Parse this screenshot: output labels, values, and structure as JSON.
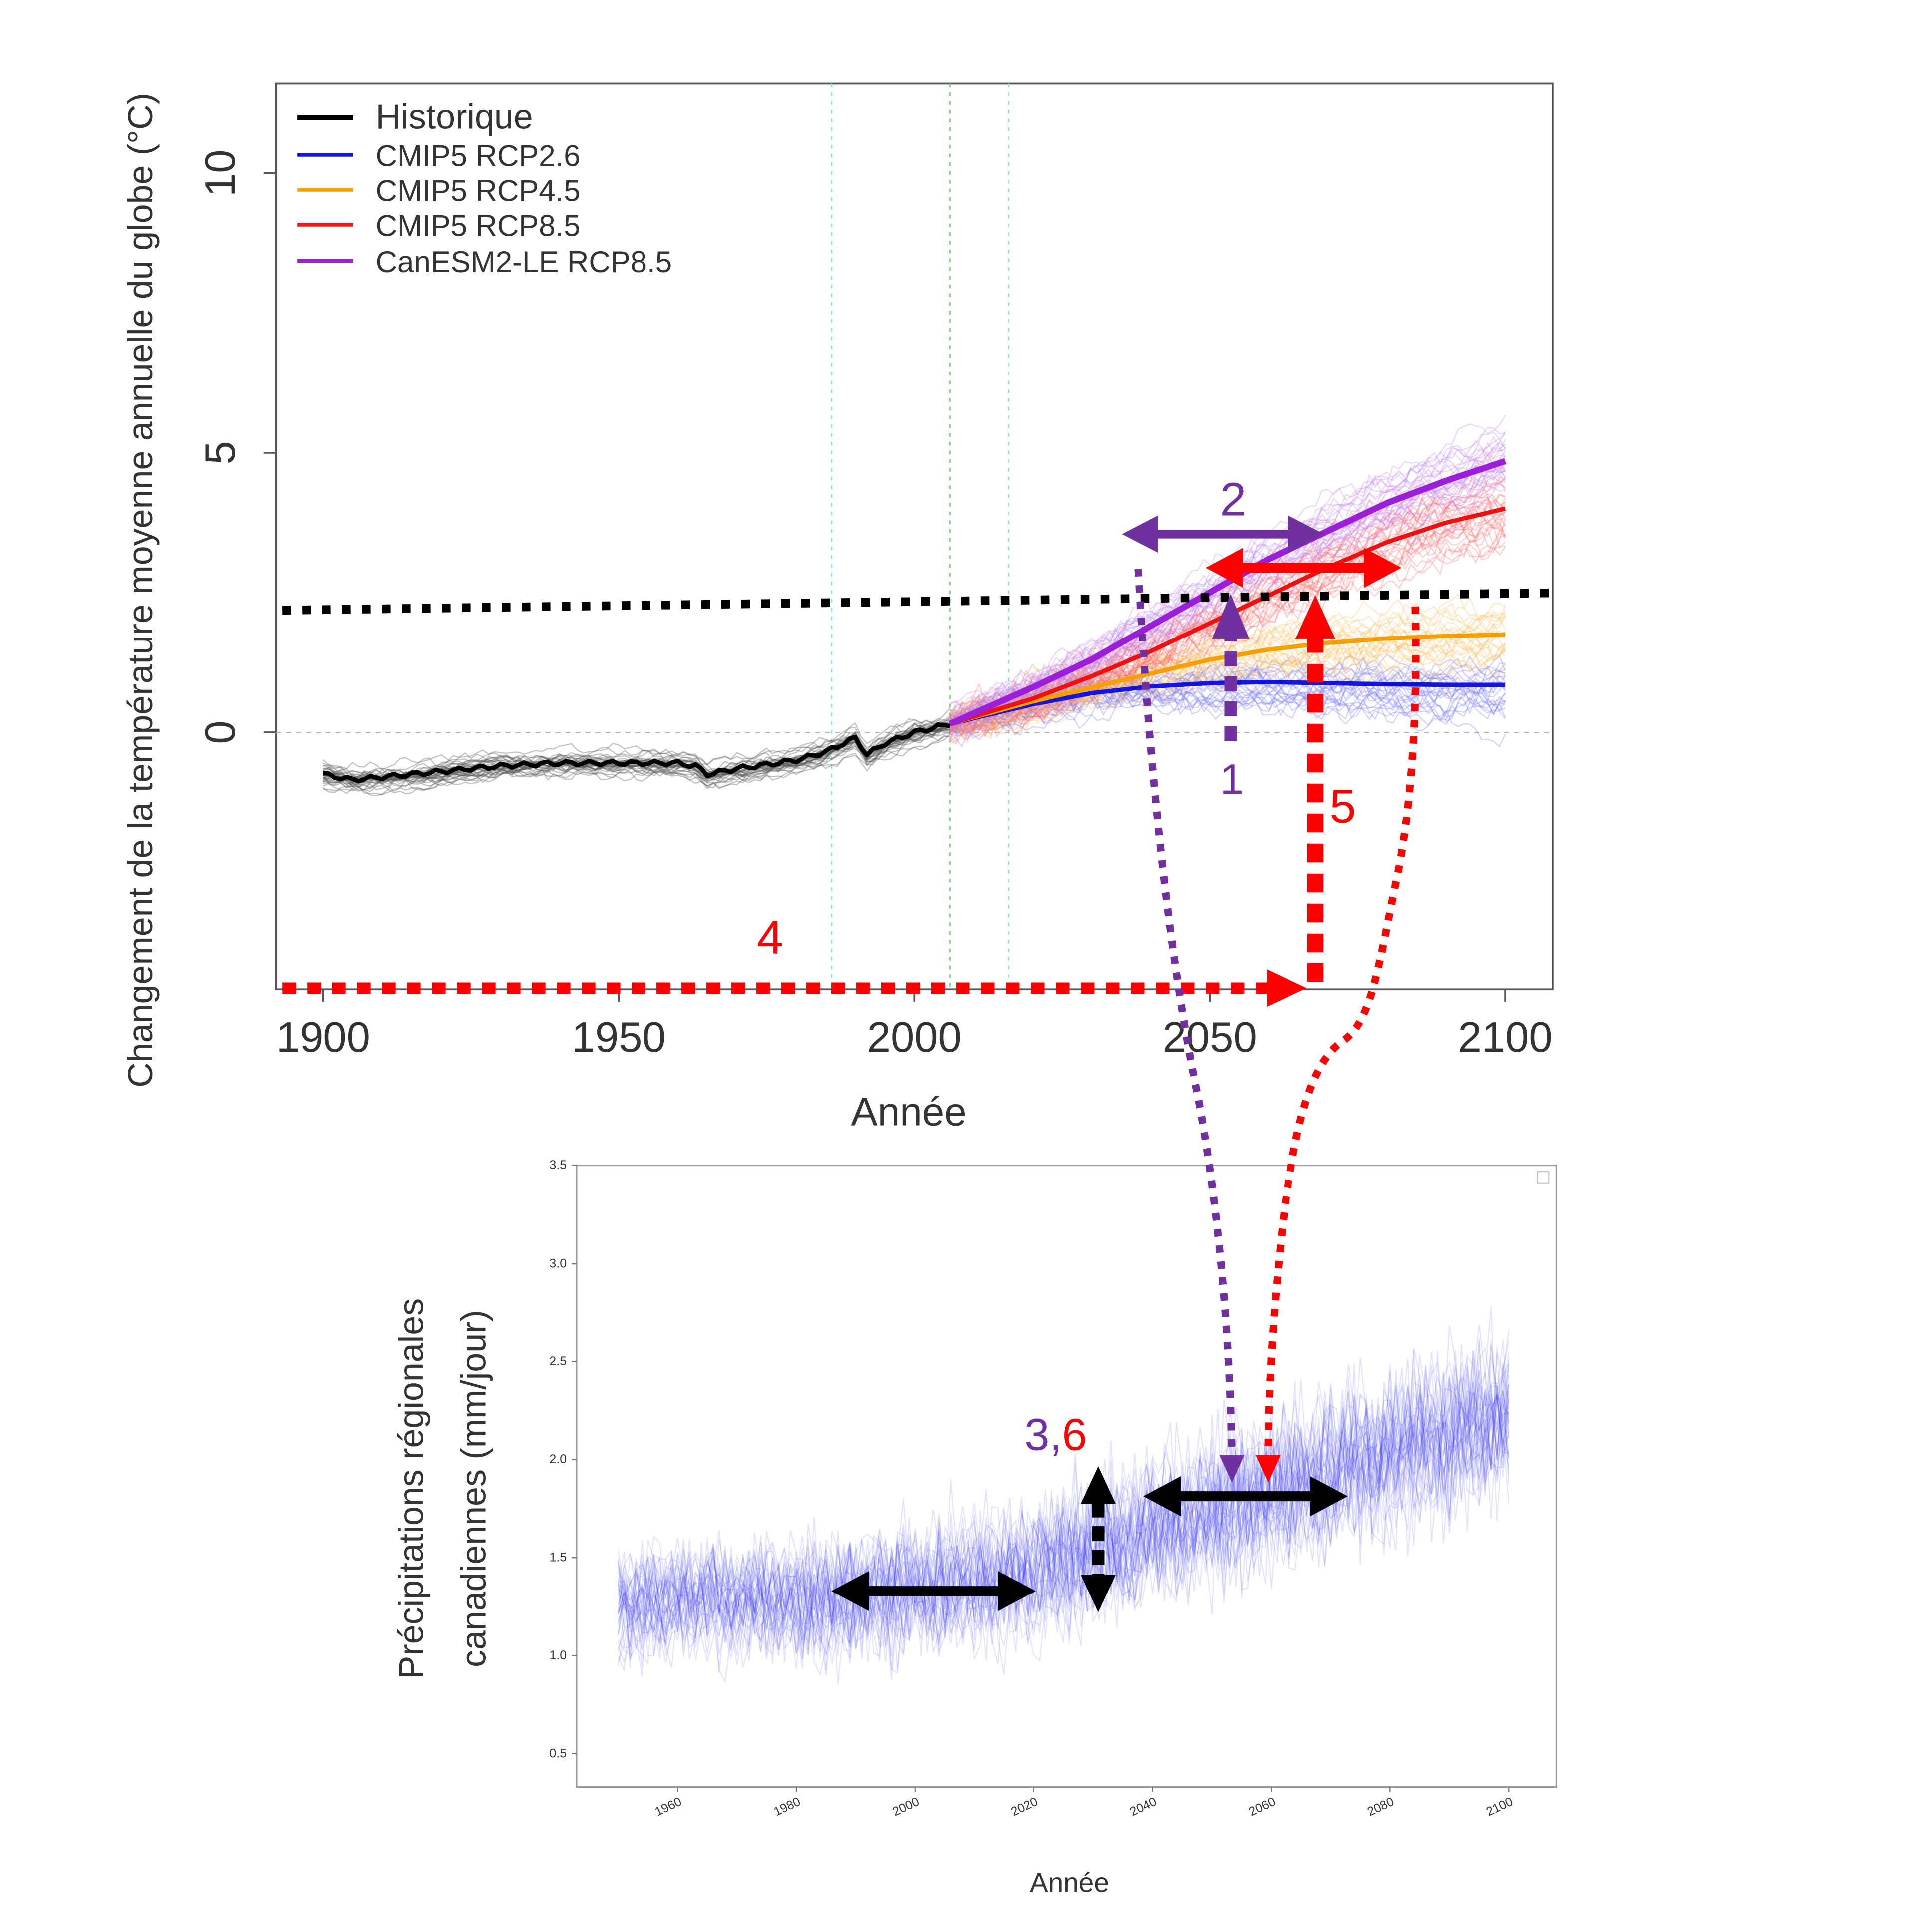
{
  "chart_data": [
    {
      "type": "line",
      "title": "",
      "xlabel": "Année",
      "ylabel": "Changement de la température moyenne annuelle du globe (°C)",
      "xlim": [
        1892,
        2108
      ],
      "ylim": [
        -4.6,
        11.6
      ],
      "x_ticks": [
        "1900",
        "1950",
        "2000",
        "2050",
        "2100"
      ],
      "y_ticks": [
        "0",
        "5",
        "10"
      ],
      "x_tick_values": [
        1900,
        1950,
        2000,
        2050,
        2100
      ],
      "y_tick_values": [
        0,
        5,
        10
      ],
      "vertical_reference_lines": [
        {
          "x": 1986,
          "color": "#8fe3e3"
        },
        {
          "x": 2006,
          "color": "#66dd66"
        },
        {
          "x": 2016,
          "color": "#8fe3e3"
        }
      ],
      "zero_line": true,
      "legend": {
        "placement": "top-left",
        "entries": [
          {
            "label": "Historique",
            "color": "#000000"
          },
          {
            "label": "CMIP5 RCP2.6",
            "color": "#1414e0"
          },
          {
            "label": "CMIP5 RCP4.5",
            "color": "#f5a000"
          },
          {
            "label": "CMIP5 RCP8.5",
            "color": "#ee1111"
          },
          {
            "label": "CanESM2-LE RCP8.5",
            "color": "#9b1fd8"
          }
        ]
      },
      "series": [
        {
          "name": "Historique",
          "color": "#000000",
          "x": [
            1900,
            1905,
            1910,
            1920,
            1930,
            1940,
            1950,
            1960,
            1963,
            1965,
            1970,
            1980,
            1985,
            1990,
            1992,
            1995,
            2000,
            2006
          ],
          "y": [
            -0.75,
            -0.85,
            -0.8,
            -0.7,
            -0.6,
            -0.55,
            -0.55,
            -0.55,
            -0.6,
            -0.75,
            -0.65,
            -0.5,
            -0.35,
            -0.1,
            -0.4,
            -0.2,
            0.0,
            0.15
          ]
        },
        {
          "name": "CMIP5 RCP2.6",
          "color": "#1414e0",
          "x": [
            2006,
            2020,
            2030,
            2040,
            2050,
            2060,
            2070,
            2080,
            2090,
            2100
          ],
          "y": [
            0.15,
            0.5,
            0.7,
            0.82,
            0.88,
            0.9,
            0.88,
            0.86,
            0.85,
            0.85
          ]
        },
        {
          "name": "CMIP5 RCP4.5",
          "color": "#f5a000",
          "x": [
            2006,
            2020,
            2030,
            2040,
            2050,
            2060,
            2070,
            2080,
            2090,
            2100
          ],
          "y": [
            0.15,
            0.55,
            0.8,
            1.05,
            1.3,
            1.48,
            1.6,
            1.68,
            1.72,
            1.75
          ]
        },
        {
          "name": "CMIP5 RCP8.5",
          "color": "#ee1111",
          "x": [
            2006,
            2020,
            2030,
            2040,
            2050,
            2060,
            2070,
            2080,
            2090,
            2100
          ],
          "y": [
            0.15,
            0.6,
            1.0,
            1.45,
            1.95,
            2.45,
            2.95,
            3.4,
            3.75,
            4.0
          ]
        },
        {
          "name": "CanESM2-LE RCP8.5",
          "color": "#9b1fd8",
          "x": [
            2006,
            2020,
            2030,
            2040,
            2050,
            2060,
            2070,
            2080,
            2090,
            2100
          ],
          "y": [
            0.15,
            0.8,
            1.3,
            1.9,
            2.5,
            3.1,
            3.6,
            4.1,
            4.5,
            4.85
          ]
        }
      ],
      "threshold_line": {
        "y_start": 2.2,
        "y_end": 2.5,
        "style": "dotted",
        "color": "#000000"
      }
    },
    {
      "type": "line",
      "title": "",
      "xlabel": "Année",
      "ylabel": "Précipitations régionales canadiennes (mm/jour)",
      "xlim": [
        1943,
        2108
      ],
      "ylim": [
        0.33,
        3.5
      ],
      "x_ticks": [
        "1960",
        "1980",
        "2000",
        "2020",
        "2040",
        "2060",
        "2080",
        "2100"
      ],
      "y_ticks": [
        "0.5",
        "1.0",
        "1.5",
        "2.0",
        "2.5",
        "3.0",
        "3.5"
      ],
      "x_tick_values": [
        1960,
        1980,
        2000,
        2020,
        2040,
        2060,
        2080,
        2100
      ],
      "y_tick_values": [
        0.5,
        1.0,
        1.5,
        2.0,
        2.5,
        3.0,
        3.5
      ],
      "series": [
        {
          "color": "#2a2aee",
          "x": [
            1950,
            1960,
            1970,
            1980,
            1990,
            2000,
            2010,
            2020,
            2030,
            2040,
            2050,
            2060,
            2070,
            2080,
            2090,
            2100
          ],
          "y": [
            1.25,
            1.3,
            1.3,
            1.3,
            1.32,
            1.35,
            1.38,
            1.45,
            1.55,
            1.65,
            1.75,
            1.85,
            1.95,
            2.05,
            2.15,
            2.25
          ]
        }
      ],
      "spread": {
        "low": 0.6,
        "high": 3.3
      }
    }
  ],
  "annotations": {
    "label_1": "1",
    "label_2": "2",
    "label_3": "3",
    "label_comma": ",",
    "label_4": "4",
    "label_5": "5",
    "label_6": "6",
    "purple": "#7030a0",
    "red": "#ff0000",
    "black": "#000000"
  }
}
